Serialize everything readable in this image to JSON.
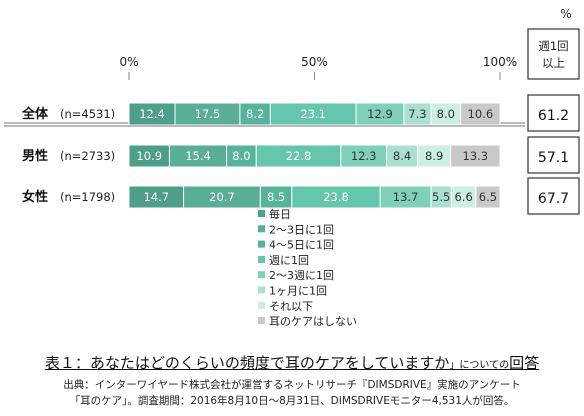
{
  "chart_data": {
    "type": "bar",
    "stacked": true,
    "orientation": "horizontal",
    "unit_mark": "%",
    "x_ticks": [
      "0%",
      "50%",
      "100%"
    ],
    "xlim": [
      0,
      100
    ],
    "grid": false,
    "legend_position": "bottom-center",
    "categories": [
      "全体",
      "男性",
      "女性"
    ],
    "category_counts": [
      "(n=4531)",
      "(n=2733)",
      "(n=1798)"
    ],
    "series": [
      {
        "name": "毎日",
        "color": "#4d9e8a",
        "values": [
          12.4,
          10.9,
          14.7
        ]
      },
      {
        "name": "2〜3日に1回",
        "color": "#5aae98",
        "values": [
          17.5,
          15.4,
          20.7
        ]
      },
      {
        "name": "4〜5日に1回",
        "color": "#56b49d",
        "values": [
          8.2,
          8.0,
          8.5
        ]
      },
      {
        "name": "週に1回",
        "color": "#66c6ad",
        "values": [
          23.1,
          22.8,
          23.8
        ]
      },
      {
        "name": "2〜3週に1回",
        "color": "#80cfb9",
        "values": [
          12.9,
          12.3,
          13.7
        ]
      },
      {
        "name": "1ヶ月に1回",
        "color": "#a9e0cf",
        "values": [
          7.3,
          8.4,
          5.5
        ]
      },
      {
        "name": "それ以下",
        "color": "#cdeee2",
        "values": [
          8.0,
          8.9,
          6.6
        ]
      },
      {
        "name": "耳のケアはしない",
        "color": "#c9c9c9",
        "values": [
          10.6,
          13.3,
          6.5
        ]
      }
    ],
    "summary_header": [
      "週1回",
      "以上"
    ],
    "summary_values": [
      61.2,
      57.1,
      67.7
    ]
  },
  "caption": {
    "main": "表１：あなたはどのくらいの頻度で耳のケアをしていますか",
    "small": "」についての",
    "end": "回答"
  },
  "source": {
    "line1": "出典：インターワイヤード株式会社が運営するネットリサーチ『DIMSDRIVE』実施のアンケート",
    "line2": "「耳のケア」。調査期間：2016年8月10日〜8月31日、DIMSDRIVEモニター4,531人が回答。"
  }
}
